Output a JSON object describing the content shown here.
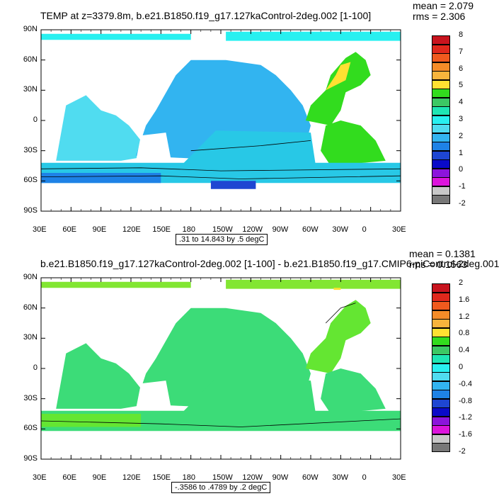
{
  "panel1": {
    "title": "TEMP at z=3379.8m, b.e21.B1850.f19_g17.127kaControl-2deg.002 [1-100]",
    "mean": "mean = 2.079",
    "rms": "rms = 2.306",
    "info": ".31 to 14.843 by .5 degC",
    "xticks": [
      "30E",
      "60E",
      "90E",
      "120E",
      "150E",
      "180",
      "150W",
      "120W",
      "90W",
      "60W",
      "30W",
      "0",
      "30E"
    ],
    "yticks": [
      "90N",
      "60N",
      "30N",
      "0",
      "30S",
      "60S",
      "90S"
    ],
    "colorbar": {
      "labels": [
        "8",
        "7",
        "6",
        "5",
        "4",
        "3",
        "2",
        "1",
        "0",
        "-1",
        "-2"
      ],
      "colors": [
        "#c8141e",
        "#e0281c",
        "#f05a1e",
        "#f58c28",
        "#f8b43c",
        "#ffe132",
        "#32dc1e",
        "#3cc864",
        "#1ee6b4",
        "#28f0f0",
        "#50dcf0",
        "#32b4f0",
        "#1e82e6",
        "#1e46d2",
        "#0a0ac8",
        "#8c14dc",
        "#dc14dc",
        "#c8c8c8",
        "#787878"
      ]
    },
    "ocean_colors": {
      "pacific": "#32b4f0",
      "atlantic_n": "#46c8f0",
      "atlantic_s": "#50dcf0",
      "southern": "#28c8e6",
      "arctic": "#28f0f0",
      "north_atl": "#32dc1e",
      "deep_south": "#1e82e6",
      "ross": "#1e46d2",
      "hotspot": "#ffe132"
    }
  },
  "panel2": {
    "title": "b.e21.B1850.f19_g17.127kaControl-2deg.002 [1-100] - b.e21.B1850.f19_g17.CMIP6-piControl-2deg.001",
    "mean": "mean = 0.1381",
    "rms": "rms = 0.1563",
    "info": "-.3586 to .4789 by .2 degC",
    "xticks": [
      "30E",
      "60E",
      "90E",
      "120E",
      "150E",
      "180",
      "150W",
      "120W",
      "90W",
      "60W",
      "30W",
      "0",
      "30E"
    ],
    "yticks": [
      "90N",
      "60N",
      "30N",
      "0",
      "30S",
      "60S",
      "90S"
    ],
    "colorbar": {
      "labels": [
        "2",
        "1.6",
        "1.2",
        "0.8",
        "0.4",
        "0",
        "-0.4",
        "-0.8",
        "-1.2",
        "-1.6",
        "-2"
      ],
      "colors": [
        "#c8141e",
        "#e0281c",
        "#f05a1e",
        "#f58c28",
        "#f8b43c",
        "#ffe132",
        "#32dc1e",
        "#3cc864",
        "#1ee6b4",
        "#28f0f0",
        "#50dcf0",
        "#32b4f0",
        "#1e82e6",
        "#1e46d2",
        "#0a0ac8",
        "#8c14dc",
        "#dc14dc",
        "#c8c8c8",
        "#787878"
      ]
    },
    "ocean_colors": {
      "main": "#3cdc78",
      "positive": "#64e632",
      "arctic": "#82e632",
      "hotspot": "#ffe132"
    }
  }
}
